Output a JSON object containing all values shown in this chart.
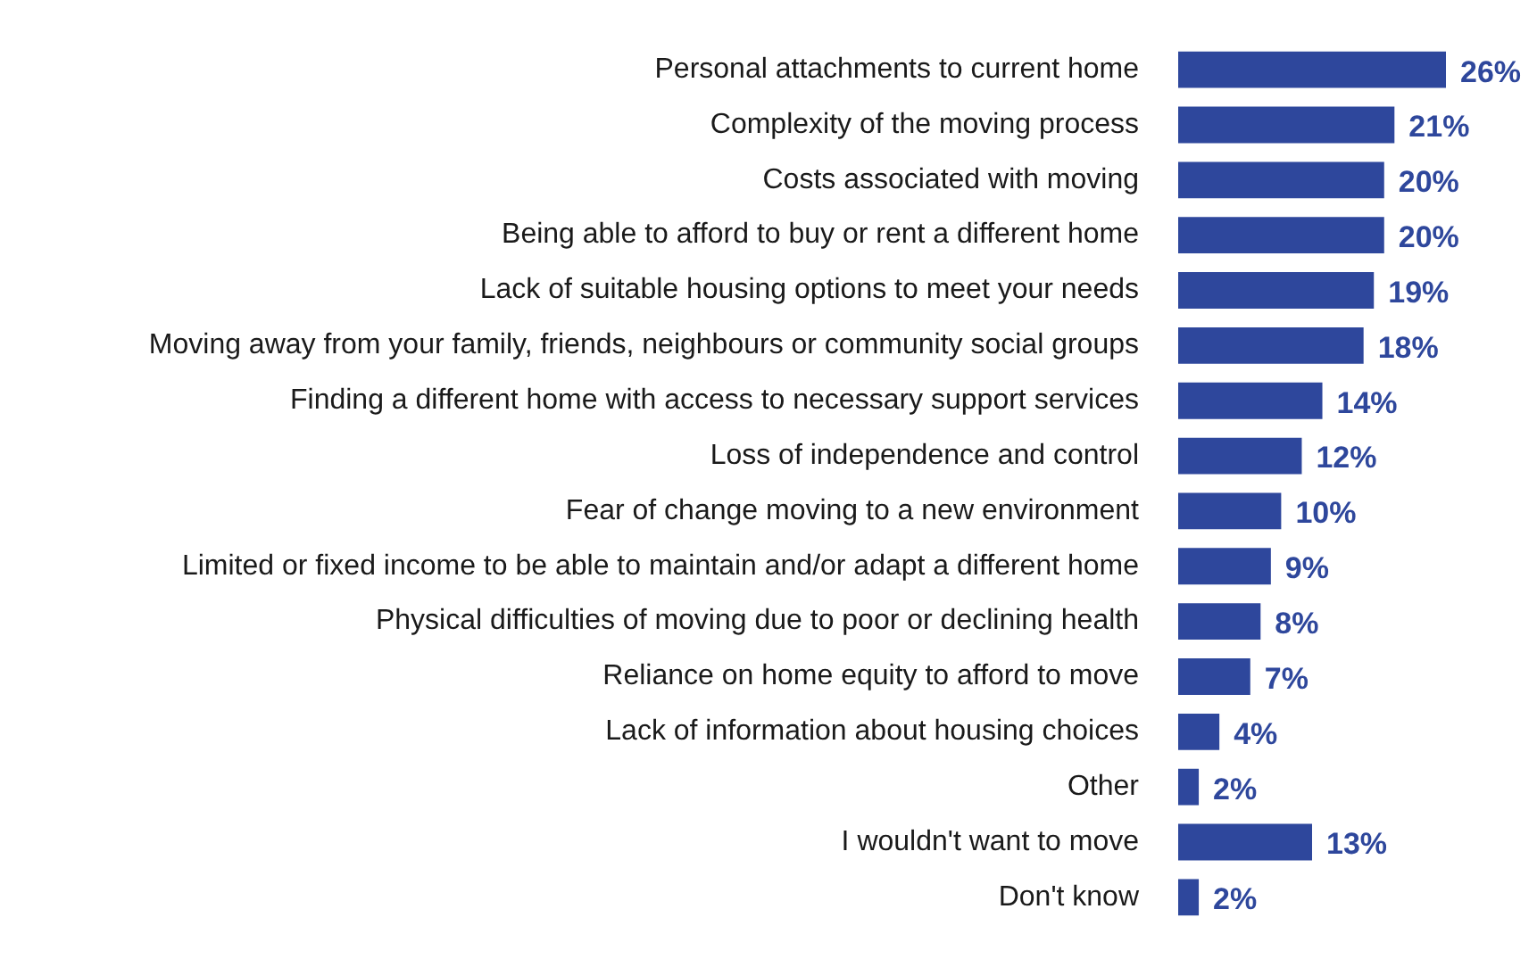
{
  "chart_data": {
    "type": "bar",
    "orientation": "horizontal",
    "categories": [
      "Personal attachments to current home",
      "Complexity of the moving process",
      "Costs associated with moving",
      "Being able to afford to buy or rent a different home",
      "Lack of suitable housing options to meet your needs",
      "Moving away from your family, friends, neighbours or community social groups",
      "Finding a different home with access to necessary support services",
      "Loss of independence and control",
      "Fear of change moving to a new environment",
      "Limited or fixed income to be able to maintain and/or adapt a different home",
      "Physical difficulties of moving due to poor or declining health",
      "Reliance on home equity to afford to move",
      "Lack of information about housing choices",
      "Other",
      "I wouldn't want to move",
      "Don't know"
    ],
    "values": [
      26,
      21,
      20,
      20,
      19,
      18,
      14,
      12,
      10,
      9,
      8,
      7,
      4,
      2,
      13,
      2
    ],
    "value_labels": [
      "26%",
      "21%",
      "20%",
      "20%",
      "19%",
      "18%",
      "14%",
      "12%",
      "10%",
      "9%",
      "8%",
      "7%",
      "4%",
      "2%",
      "13%",
      "2%"
    ],
    "color": "#2e479c",
    "grid": false,
    "legend": false
  }
}
